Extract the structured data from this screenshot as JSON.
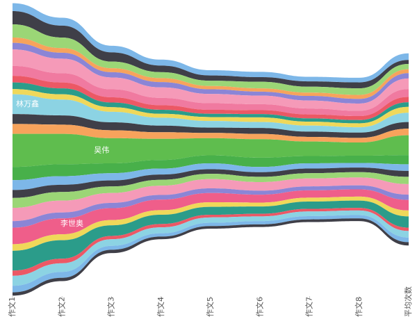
{
  "chart_data": {
    "type": "streamgraph",
    "categories": [
      "作文1",
      "作文2",
      "作文3",
      "作文4",
      "作文5",
      "作文6",
      "作文7",
      "作文8",
      "平均次数"
    ],
    "series": [
      {
        "color": "#7db7e8",
        "values": [
          12,
          12,
          10,
          9,
          8,
          8,
          7,
          7,
          10
        ]
      },
      {
        "color": "#3f3f48",
        "values": [
          20,
          18,
          14,
          10,
          8,
          7,
          8,
          9,
          6
        ]
      },
      {
        "color": "#9bd676",
        "values": [
          20,
          16,
          10,
          9,
          8,
          10,
          9,
          10,
          8
        ]
      },
      {
        "color": "#f7a35c",
        "values": [
          8,
          7,
          6,
          6,
          5,
          5,
          5,
          6,
          6
        ]
      },
      {
        "color": "#8b85d6",
        "values": [
          10,
          9,
          8,
          8,
          7,
          6,
          7,
          7,
          8
        ]
      },
      {
        "color": "#f59ab8",
        "values": [
          25,
          22,
          18,
          16,
          14,
          13,
          12,
          11,
          16
        ]
      },
      {
        "color": "#f07aa0",
        "values": [
          15,
          14,
          12,
          11,
          10,
          9,
          9,
          8,
          12
        ]
      },
      {
        "color": "#ec5865",
        "values": [
          10,
          9,
          8,
          7,
          6,
          6,
          6,
          6,
          8
        ]
      },
      {
        "color": "#2b9c8a",
        "values": [
          10,
          9,
          7,
          6,
          5,
          5,
          5,
          5,
          7
        ]
      },
      {
        "color": "#efd85a",
        "values": [
          8,
          8,
          7,
          6,
          6,
          7,
          6,
          6,
          9
        ]
      },
      {
        "name": "林万鑫",
        "color": "#8cd3e3",
        "values": [
          30,
          24,
          16,
          12,
          10,
          9,
          9,
          8,
          14
        ]
      },
      {
        "color": "#3f3f48",
        "values": [
          15,
          14,
          12,
          10,
          8,
          9,
          8,
          8,
          10
        ]
      },
      {
        "color": "#f7a35c",
        "values": [
          15,
          14,
          12,
          10,
          8,
          8,
          7,
          7,
          10
        ]
      },
      {
        "name": "吴伟",
        "color": "#5fbd4e",
        "values": [
          50,
          46,
          38,
          32,
          26,
          28,
          22,
          20,
          30
        ]
      },
      {
        "color": "#48b04a",
        "values": [
          20,
          18,
          15,
          13,
          12,
          14,
          11,
          11,
          14
        ]
      },
      {
        "color": "#7db7e8",
        "values": [
          15,
          13,
          11,
          9,
          9,
          8,
          8,
          7,
          10
        ]
      },
      {
        "color": "#3f3f48",
        "values": [
          12,
          11,
          9,
          8,
          7,
          7,
          7,
          7,
          9
        ]
      },
      {
        "color": "#9bd676",
        "values": [
          15,
          13,
          10,
          9,
          8,
          8,
          8,
          8,
          11
        ]
      },
      {
        "color": "#f59ab8",
        "values": [
          20,
          18,
          15,
          14,
          14,
          13,
          12,
          12,
          16
        ]
      },
      {
        "color": "#8b85d6",
        "values": [
          10,
          9,
          8,
          7,
          7,
          6,
          6,
          6,
          8
        ]
      },
      {
        "name": "李世奥",
        "color": "#ef5e8a",
        "values": [
          25,
          24,
          18,
          16,
          14,
          12,
          11,
          11,
          16
        ]
      },
      {
        "color": "#efd85a",
        "values": [
          10,
          9,
          8,
          7,
          7,
          6,
          6,
          6,
          9
        ]
      },
      {
        "color": "#2b9c8a",
        "values": [
          30,
          28,
          16,
          14,
          12,
          11,
          11,
          11,
          17
        ]
      },
      {
        "color": "#ec5865",
        "values": [
          8,
          7,
          5,
          5,
          4,
          4,
          4,
          4,
          5
        ]
      },
      {
        "color": "#8cd3e3",
        "values": [
          15,
          13,
          10,
          9,
          8,
          7,
          7,
          7,
          10
        ]
      },
      {
        "color": "#7db7e8",
        "values": [
          10,
          9,
          6,
          5,
          5,
          5,
          5,
          5,
          7
        ]
      },
      {
        "color": "#3f3f48",
        "values": [
          5,
          5,
          5,
          4,
          4,
          4,
          4,
          4,
          5
        ]
      }
    ]
  }
}
